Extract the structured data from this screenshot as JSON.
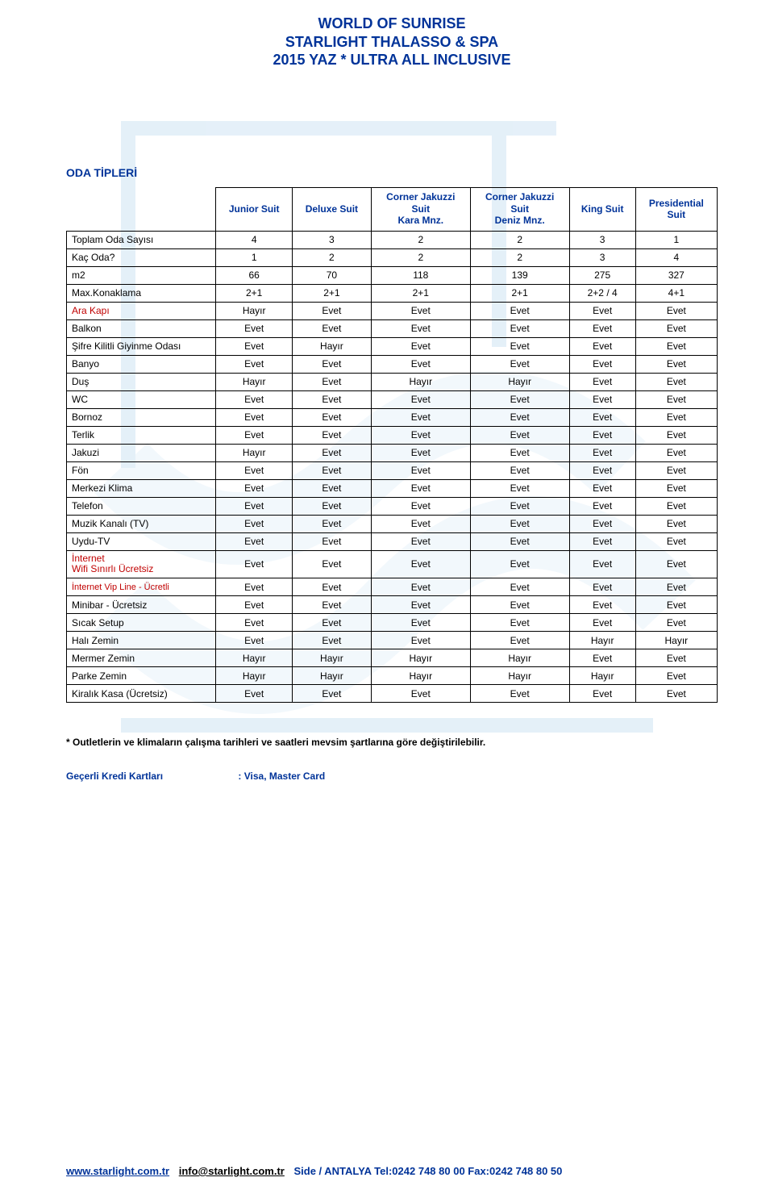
{
  "title": {
    "line1": "WORLD OF SUNRISE",
    "line2": "STARLIGHT THALASSO & SPA",
    "line3": "2015 YAZ  *  ULTRA ALL INCLUSIVE"
  },
  "section_heading": "ODA TİPLERİ",
  "columns": [
    "Junior Suit",
    "Deluxe Suit",
    "Corner Jakuzzi Suit Kara Mnz.",
    "Corner Jakuzzi Suit Deniz Mnz.",
    "King Suit",
    "Presidential Suit"
  ],
  "rows": [
    {
      "label": "Toplam Oda Sayısı",
      "vals": [
        "4",
        "3",
        "2",
        "2",
        "3",
        "1"
      ]
    },
    {
      "label": "Kaç Oda?",
      "vals": [
        "1",
        "2",
        "2",
        "2",
        "3",
        "4"
      ]
    },
    {
      "label": "m2",
      "vals": [
        "66",
        "70",
        "118",
        "139",
        "275",
        "327"
      ]
    },
    {
      "label": "Max.Konaklama",
      "vals": [
        "2+1",
        "2+1",
        "2+1",
        "2+1",
        "2+2 / 4",
        "4+1"
      ]
    },
    {
      "label": "Ara Kapı",
      "red": true,
      "vals": [
        "Hayır",
        "Evet",
        "Evet",
        "Evet",
        "Evet",
        "Evet"
      ]
    },
    {
      "label": "Balkon",
      "vals": [
        "Evet",
        "Evet",
        "Evet",
        "Evet",
        "Evet",
        "Evet"
      ]
    },
    {
      "label": "Şifre Kilitli Giyinme Odası",
      "vals": [
        "Evet",
        "Hayır",
        "Evet",
        "Evet",
        "Evet",
        "Evet"
      ]
    },
    {
      "label": "Banyo",
      "vals": [
        "Evet",
        "Evet",
        "Evet",
        "Evet",
        "Evet",
        "Evet"
      ]
    },
    {
      "label": "Duş",
      "vals": [
        "Hayır",
        "Evet",
        "Hayır",
        "Hayır",
        "Evet",
        "Evet"
      ]
    },
    {
      "label": "WC",
      "vals": [
        "Evet",
        "Evet",
        "Evet",
        "Evet",
        "Evet",
        "Evet"
      ]
    },
    {
      "label": "Bornoz",
      "vals": [
        "Evet",
        "Evet",
        "Evet",
        "Evet",
        "Evet",
        "Evet"
      ]
    },
    {
      "label": "Terlik",
      "vals": [
        "Evet",
        "Evet",
        "Evet",
        "Evet",
        "Evet",
        "Evet"
      ]
    },
    {
      "label": "Jakuzi",
      "vals": [
        "Hayır",
        "Evet",
        "Evet",
        "Evet",
        "Evet",
        "Evet"
      ]
    },
    {
      "label": "Fön",
      "vals": [
        "Evet",
        "Evet",
        "Evet",
        "Evet",
        "Evet",
        "Evet"
      ]
    },
    {
      "label": "Merkezi Klima",
      "vals": [
        "Evet",
        "Evet",
        "Evet",
        "Evet",
        "Evet",
        "Evet"
      ]
    },
    {
      "label": "Telefon",
      "vals": [
        "Evet",
        "Evet",
        "Evet",
        "Evet",
        "Evet",
        "Evet"
      ]
    },
    {
      "label": "Muzik Kanalı (TV)",
      "vals": [
        "Evet",
        "Evet",
        "Evet",
        "Evet",
        "Evet",
        "Evet"
      ]
    },
    {
      "label": "Uydu-TV",
      "vals": [
        "Evet",
        "Evet",
        "Evet",
        "Evet",
        "Evet",
        "Evet"
      ]
    },
    {
      "label": "İnternet\nWifi Sınırlı Ücretsiz",
      "red": true,
      "multi": true,
      "vals": [
        "Evet",
        "Evet",
        "Evet",
        "Evet",
        "Evet",
        "Evet"
      ]
    },
    {
      "label": "İnternet Vip Line  - Ücretli",
      "red": true,
      "small": true,
      "vals": [
        "Evet",
        "Evet",
        "Evet",
        "Evet",
        "Evet",
        "Evet"
      ]
    },
    {
      "label": "Minibar - Ücretsiz",
      "vals": [
        "Evet",
        "Evet",
        "Evet",
        "Evet",
        "Evet",
        "Evet"
      ]
    },
    {
      "label": "Sıcak Setup",
      "vals": [
        "Evet",
        "Evet",
        "Evet",
        "Evet",
        "Evet",
        "Evet"
      ]
    },
    {
      "label": "Halı Zemin",
      "vals": [
        "Evet",
        "Evet",
        "Evet",
        "Evet",
        "Hayır",
        "Hayır"
      ]
    },
    {
      "label": "Mermer Zemin",
      "vals": [
        "Hayır",
        "Hayır",
        "Hayır",
        "Hayır",
        "Evet",
        "Evet"
      ]
    },
    {
      "label": "Parke Zemin",
      "vals": [
        "Hayır",
        "Hayır",
        "Hayır",
        "Hayır",
        "Hayır",
        "Evet"
      ]
    },
    {
      "label": "Kiralık Kasa (Ücretsiz)",
      "vals": [
        "Evet",
        "Evet",
        "Evet",
        "Evet",
        "Evet",
        "Evet"
      ]
    }
  ],
  "note": "* Outletlerin ve klimaların çalışma tarihleri ve  saatleri mevsim şartlarına göre değiştirilebilir.",
  "cards_label": "Geçerli Kredi Kartları",
  "cards_value": ": Visa, Master Card",
  "footer": {
    "site": "www.starlight.com.tr",
    "mail": "info@starlight.com.tr",
    "rest": "Side / ANTALYA Tel:0242 748 80 00 Fax:0242 748 80 50"
  },
  "colors": {
    "brand_blue": "#003399",
    "red": "#c00000",
    "watermark": "#cfe4f4"
  }
}
